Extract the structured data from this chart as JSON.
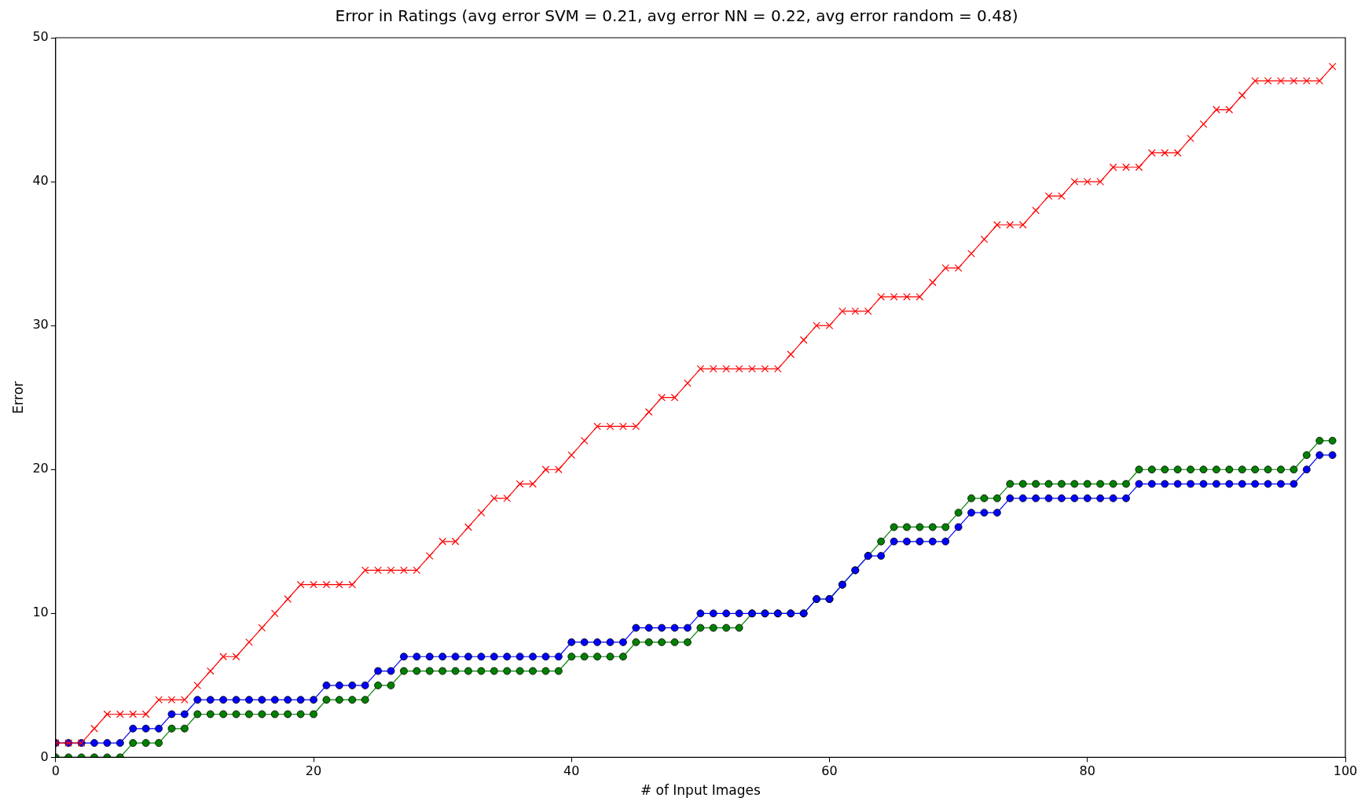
{
  "chart_data": {
    "type": "line",
    "title": "Error in Ratings (avg error SVM = 0.21, avg error NN = 0.22, avg error random = 0.48)",
    "xlabel": "# of Input Images",
    "ylabel": "Error",
    "x": [
      0,
      1,
      2,
      3,
      4,
      5,
      6,
      7,
      8,
      9,
      10,
      11,
      12,
      13,
      14,
      15,
      16,
      17,
      18,
      19,
      20,
      21,
      22,
      23,
      24,
      25,
      26,
      27,
      28,
      29,
      30,
      31,
      32,
      33,
      34,
      35,
      36,
      37,
      38,
      39,
      40,
      41,
      42,
      43,
      44,
      45,
      46,
      47,
      48,
      49,
      50,
      51,
      52,
      53,
      54,
      55,
      56,
      57,
      58,
      59,
      60,
      61,
      62,
      63,
      64,
      65,
      66,
      67,
      68,
      69,
      70,
      71,
      72,
      73,
      74,
      75,
      76,
      77,
      78,
      79,
      80,
      81,
      82,
      83,
      84,
      85,
      86,
      87,
      88,
      89,
      90,
      91,
      92,
      93,
      94,
      95,
      96,
      97,
      98,
      99
    ],
    "xlim": [
      0,
      100
    ],
    "xticks": [
      0,
      20,
      40,
      60,
      80,
      100
    ],
    "ylim": [
      0,
      50
    ],
    "yticks": [
      0,
      10,
      20,
      30,
      40,
      50
    ],
    "grid": false,
    "legend": false,
    "series": [
      {
        "color": "#ff0000",
        "marker": "cross",
        "values": [
          1,
          1,
          1,
          2,
          3,
          3,
          3,
          3,
          4,
          4,
          4,
          5,
          6,
          7,
          7,
          8,
          9,
          10,
          11,
          12,
          12,
          12,
          12,
          12,
          13,
          13,
          13,
          13,
          13,
          14,
          15,
          15,
          16,
          17,
          18,
          18,
          19,
          19,
          20,
          20,
          21,
          22,
          23,
          23,
          23,
          23,
          24,
          25,
          25,
          26,
          27,
          27,
          27,
          27,
          27,
          27,
          27,
          28,
          29,
          30,
          30,
          31,
          31,
          31,
          32,
          32,
          32,
          32,
          33,
          34,
          34,
          35,
          36,
          37,
          37,
          37,
          38,
          39,
          39,
          40,
          40,
          40,
          41,
          41,
          41,
          42,
          42,
          42,
          43,
          44,
          45,
          45,
          46,
          47,
          47,
          47,
          47,
          47,
          47,
          48
        ]
      },
      {
        "color": "#0000ff",
        "marker": "circle",
        "values": [
          1,
          1,
          1,
          1,
          1,
          1,
          2,
          2,
          2,
          3,
          3,
          4,
          4,
          4,
          4,
          4,
          4,
          4,
          4,
          4,
          4,
          5,
          5,
          5,
          5,
          6,
          6,
          7,
          7,
          7,
          7,
          7,
          7,
          7,
          7,
          7,
          7,
          7,
          7,
          7,
          8,
          8,
          8,
          8,
          8,
          9,
          9,
          9,
          9,
          9,
          10,
          10,
          10,
          10,
          10,
          10,
          10,
          10,
          10,
          11,
          11,
          12,
          13,
          14,
          14,
          15,
          15,
          15,
          15,
          15,
          16,
          17,
          17,
          17,
          18,
          18,
          18,
          18,
          18,
          18,
          18,
          18,
          18,
          18,
          19,
          19,
          19,
          19,
          19,
          19,
          19,
          19,
          19,
          19,
          19,
          19,
          19,
          20,
          21,
          21
        ]
      },
      {
        "color": "#008000",
        "marker": "circle",
        "values": [
          0,
          0,
          0,
          0,
          0,
          0,
          1,
          1,
          1,
          2,
          2,
          3,
          3,
          3,
          3,
          3,
          3,
          3,
          3,
          3,
          3,
          4,
          4,
          4,
          4,
          5,
          5,
          6,
          6,
          6,
          6,
          6,
          6,
          6,
          6,
          6,
          6,
          6,
          6,
          6,
          7,
          7,
          7,
          7,
          7,
          8,
          8,
          8,
          8,
          8,
          9,
          9,
          9,
          9,
          10,
          10,
          10,
          10,
          10,
          11,
          11,
          12,
          13,
          14,
          15,
          16,
          16,
          16,
          16,
          16,
          17,
          18,
          18,
          18,
          19,
          19,
          19,
          19,
          19,
          19,
          19,
          19,
          19,
          19,
          20,
          20,
          20,
          20,
          20,
          20,
          20,
          20,
          20,
          20,
          20,
          20,
          20,
          21,
          22,
          22
        ]
      }
    ]
  }
}
